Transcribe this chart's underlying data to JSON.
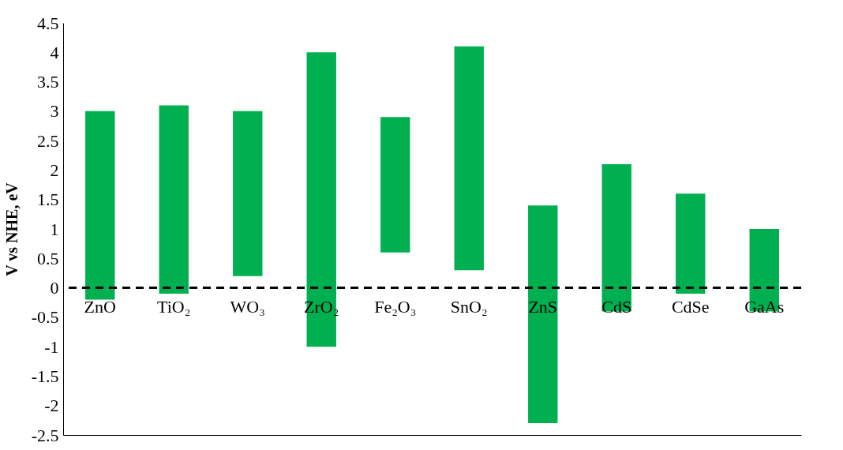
{
  "chart_data": {
    "type": "bar",
    "ylabel": "V vs NHE, eV",
    "categories": [
      "ZnO",
      "TiO₂",
      "WO₃",
      "ZrO₂",
      "Fe₂O₃",
      "SnO₂",
      "ZnS",
      "CdS",
      "CdSe",
      "GaAs"
    ],
    "base": [
      -0.2,
      -0.1,
      0.2,
      -1.0,
      0.6,
      0.3,
      -2.3,
      -0.4,
      -0.1,
      -0.4
    ],
    "values": [
      3.2,
      3.2,
      2.8,
      5.0,
      2.3,
      3.8,
      3.7,
      2.5,
      1.7,
      1.4
    ],
    "color": "#00b050",
    "ylim": [
      -2.5,
      4.5
    ],
    "yticks": [
      -2.5,
      -2,
      -1.5,
      -1,
      -0.5,
      0,
      0.5,
      1,
      1.5,
      2,
      2.5,
      3,
      3.5,
      4,
      4.5
    ],
    "ref_lines": [
      {
        "axis": "y",
        "value": 0,
        "color": "#000000",
        "line_style": "dashed"
      }
    ],
    "grid": false
  }
}
